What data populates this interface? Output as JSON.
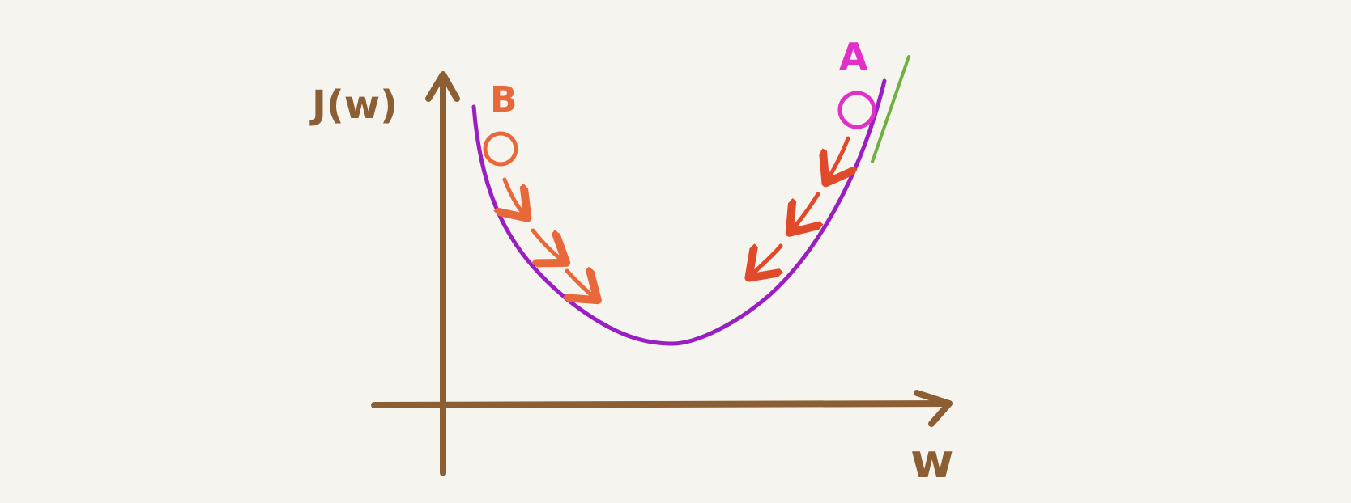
{
  "labels": {
    "y_axis": "J(w)",
    "x_axis": "w",
    "point_a": "A",
    "point_b": "B"
  },
  "colors": {
    "background": "#f6f4ee",
    "axes": "#8b5e34",
    "curve": "#9a1fc2",
    "point_a": "#e030c8",
    "point_b": "#e8683a",
    "tangent": "#6fb043",
    "arrows_a": "#e04a2a",
    "arrows_b": "#e8683a"
  }
}
